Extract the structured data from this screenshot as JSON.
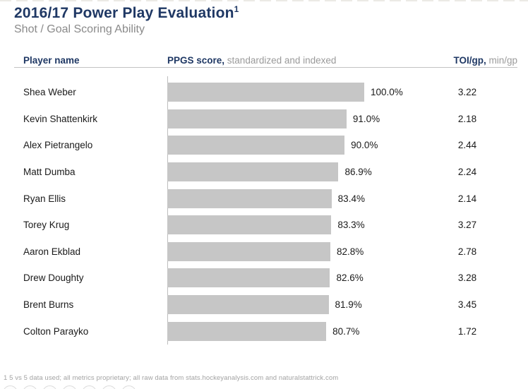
{
  "title": {
    "text": "2016/17 Power Play Evaluation",
    "footnote_marker": "1"
  },
  "subtitle": "Shot / Goal Scoring Ability",
  "header": {
    "player_col": "Player name",
    "score_col_bold": "PPGS score,",
    "score_col_rest": " standardized and indexed",
    "toi_col_bold": "TOI/gp,",
    "toi_col_rest": " min/gp"
  },
  "rows": [
    {
      "player": "Shea Weber",
      "score_pct": 100.0,
      "score_label": "100.0%",
      "toi": "3.22"
    },
    {
      "player": "Kevin Shattenkirk",
      "score_pct": 91.0,
      "score_label": "91.0%",
      "toi": "2.18"
    },
    {
      "player": "Alex Pietrangelo",
      "score_pct": 90.0,
      "score_label": "90.0%",
      "toi": "2.44"
    },
    {
      "player": "Matt Dumba",
      "score_pct": 86.9,
      "score_label": "86.9%",
      "toi": "2.24"
    },
    {
      "player": "Ryan Ellis",
      "score_pct": 83.4,
      "score_label": "83.4%",
      "toi": "2.14"
    },
    {
      "player": "Torey Krug",
      "score_pct": 83.3,
      "score_label": "83.3%",
      "toi": "3.27"
    },
    {
      "player": "Aaron Ekblad",
      "score_pct": 82.8,
      "score_label": "82.8%",
      "toi": "2.78"
    },
    {
      "player": "Drew Doughty",
      "score_pct": 82.6,
      "score_label": "82.6%",
      "toi": "3.28"
    },
    {
      "player": "Brent Burns",
      "score_pct": 81.9,
      "score_label": "81.9%",
      "toi": "3.45"
    },
    {
      "player": "Colton Parayko",
      "score_pct": 80.7,
      "score_label": "80.7%",
      "toi": "1.72"
    }
  ],
  "footnote": "1 5 vs 5 data used; all metrics proprietary; all raw data from stats.hockeyanalysis.com and naturalstattrick.com",
  "colors": {
    "title_navy": "#1f3864",
    "subtitle_gray": "#8a8a8a",
    "bar_gray": "#c6c6c6",
    "axis_gray": "#bdbdbd",
    "divider_gray": "#c3c3c3",
    "text_black": "#1a1a1a",
    "footnote_gray": "#a3a3a3"
  },
  "chart_data": {
    "type": "bar",
    "orientation": "horizontal",
    "title": "2016/17 Power Play Evaluation",
    "subtitle": "Shot / Goal Scoring Ability",
    "categories": [
      "Shea Weber",
      "Kevin Shattenkirk",
      "Alex Pietrangelo",
      "Matt Dumba",
      "Ryan Ellis",
      "Torey Krug",
      "Aaron Ekblad",
      "Drew Doughty",
      "Brent Burns",
      "Colton Parayko"
    ],
    "series": [
      {
        "name": "PPGS score, standardized and indexed (%)",
        "values": [
          100.0,
          91.0,
          90.0,
          86.9,
          83.4,
          83.3,
          82.8,
          82.6,
          81.9,
          80.7
        ]
      },
      {
        "name": "TOI/gp, min/gp",
        "values": [
          3.22,
          2.18,
          2.44,
          2.24,
          2.14,
          3.27,
          2.78,
          3.28,
          3.45,
          1.72
        ]
      }
    ],
    "xlim": [
      0,
      100
    ],
    "grid": false,
    "legend": false,
    "data_labels": true,
    "bar_color": "#c6c6c6"
  }
}
